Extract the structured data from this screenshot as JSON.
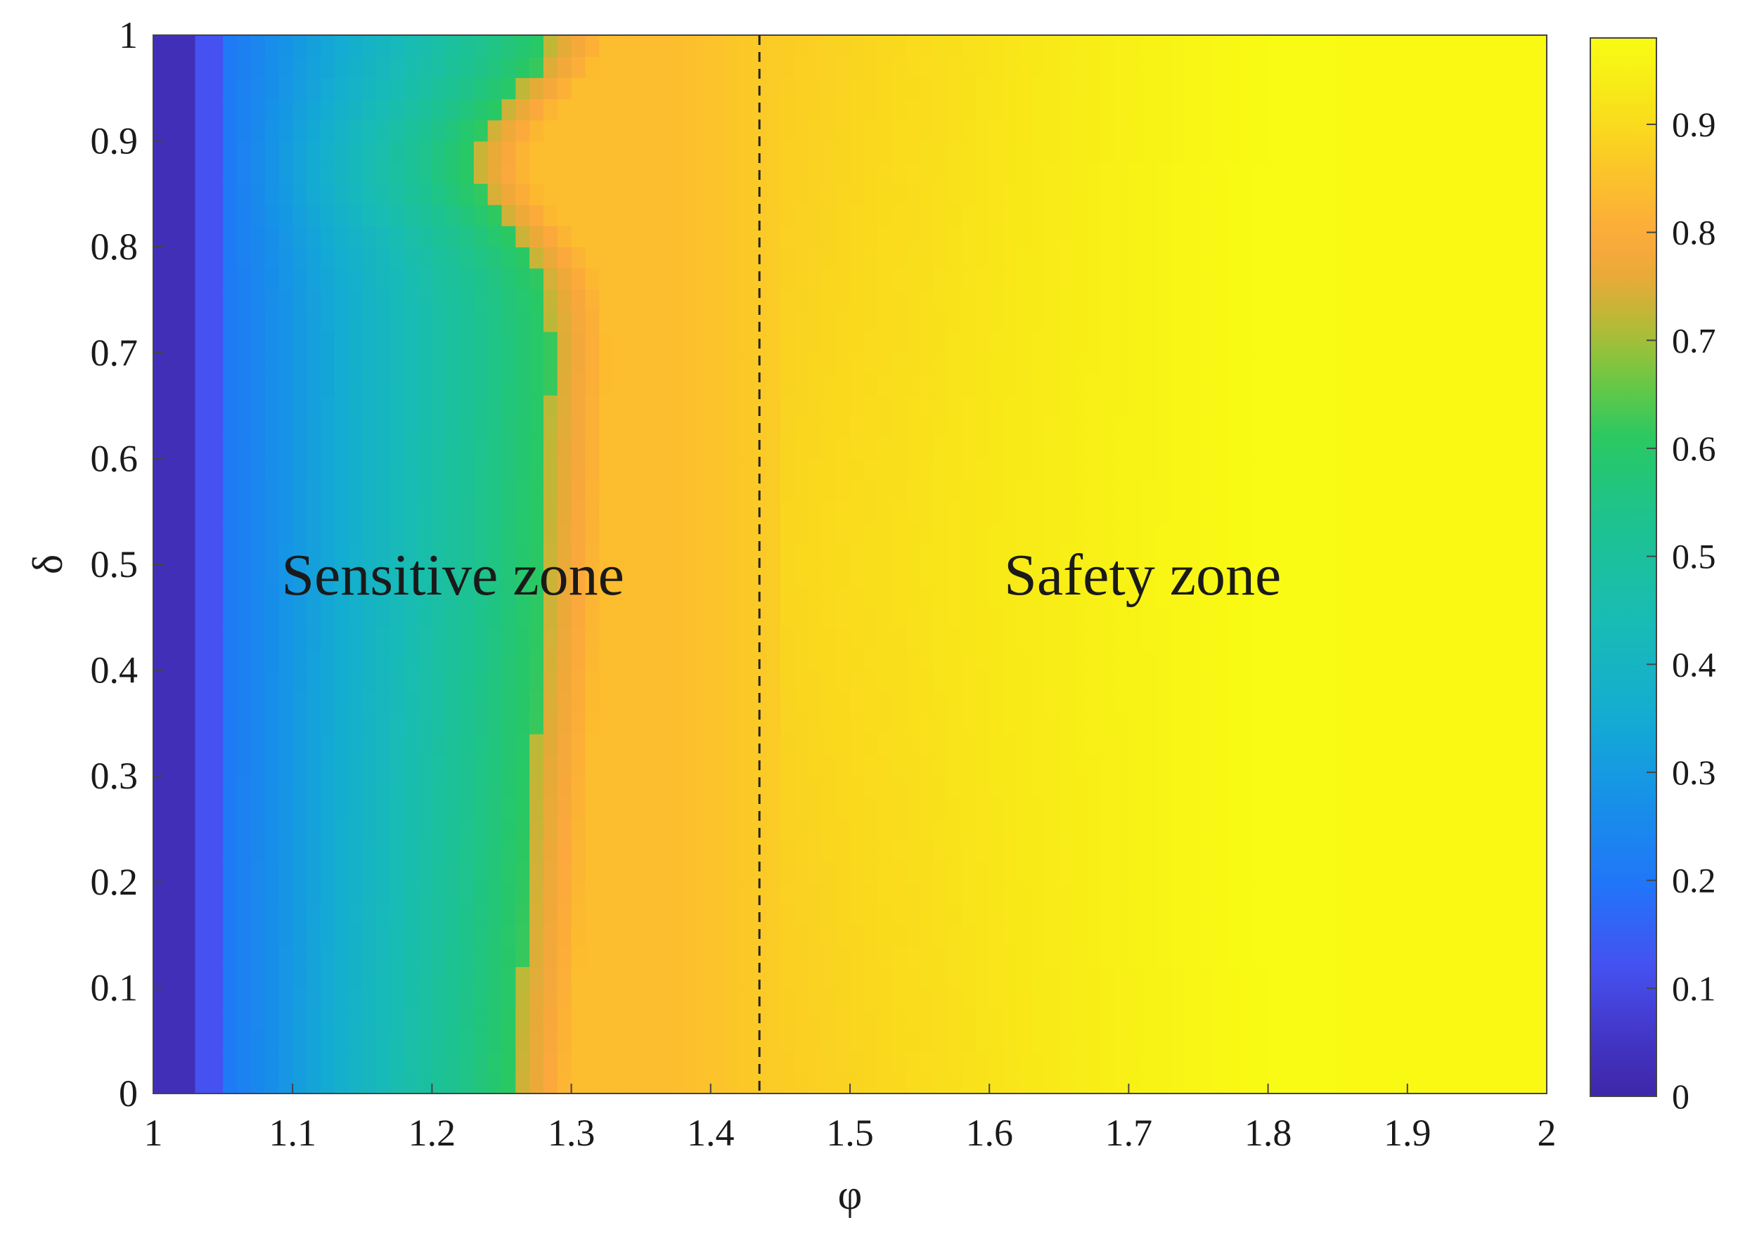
{
  "chart_data": {
    "type": "heatmap",
    "xlabel": "φ",
    "ylabel": "δ",
    "xlim": [
      1,
      2
    ],
    "ylim": [
      0,
      1
    ],
    "x_ticks": [
      "1",
      "1.1",
      "1.2",
      "1.3",
      "1.4",
      "1.5",
      "1.6",
      "1.7",
      "1.8",
      "1.9",
      "2"
    ],
    "y_ticks": [
      "0",
      "0.1",
      "0.2",
      "0.3",
      "0.4",
      "0.5",
      "0.6",
      "0.7",
      "0.8",
      "0.9",
      "1"
    ],
    "colorbar": {
      "range": [
        0,
        0.98
      ],
      "ticks": [
        "0",
        "0.1",
        "0.2",
        "0.3",
        "0.4",
        "0.5",
        "0.6",
        "0.7",
        "0.8",
        "0.9"
      ],
      "colormap": "parula"
    },
    "divider": {
      "x": 1.435,
      "style": "dashed"
    },
    "annotations": [
      {
        "text": "Sensitive zone",
        "x": 1.215,
        "y": 0.49
      },
      {
        "text": "Safety zone",
        "x": 1.71,
        "y": 0.49
      }
    ],
    "grid": false,
    "legend": "none",
    "colors": {
      "dark_blue": "#3e26a8",
      "blue": "#1a7cf0",
      "cyan": "#17b0c6",
      "green": "#2cbd6a",
      "orange": "#fca83b",
      "yellow": "#f9fa14"
    }
  }
}
